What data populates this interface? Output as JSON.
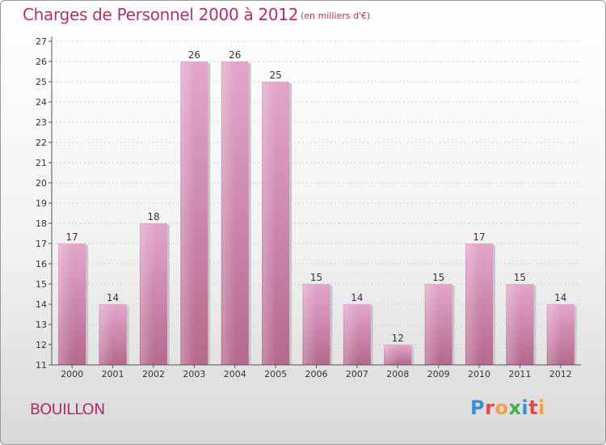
{
  "header": {
    "title": "Charges de Personnel 2000 à 2012",
    "subtitle": "(en milliers d'€)"
  },
  "footer": {
    "location": "BOUILLON",
    "logo_text": "Proxiti"
  },
  "colors": {
    "bar": "#c96ea0",
    "accent": "#b0306a"
  },
  "chart_data": {
    "type": "bar",
    "title": "Charges de Personnel 2000 à 2012",
    "subtitle": "(en milliers d'€)",
    "xlabel": "",
    "ylabel": "",
    "categories": [
      "2000",
      "2001",
      "2002",
      "2003",
      "2004",
      "2005",
      "2006",
      "2007",
      "2008",
      "2009",
      "2010",
      "2011",
      "2012"
    ],
    "values": [
      17,
      14,
      18,
      26,
      26,
      25,
      15,
      14,
      12,
      15,
      17,
      15,
      14
    ],
    "ylim": [
      11,
      27
    ],
    "yticks": [
      11,
      12,
      13,
      14,
      15,
      16,
      17,
      18,
      19,
      20,
      21,
      22,
      23,
      24,
      25,
      26,
      27
    ],
    "grid": true,
    "legend": "none"
  }
}
